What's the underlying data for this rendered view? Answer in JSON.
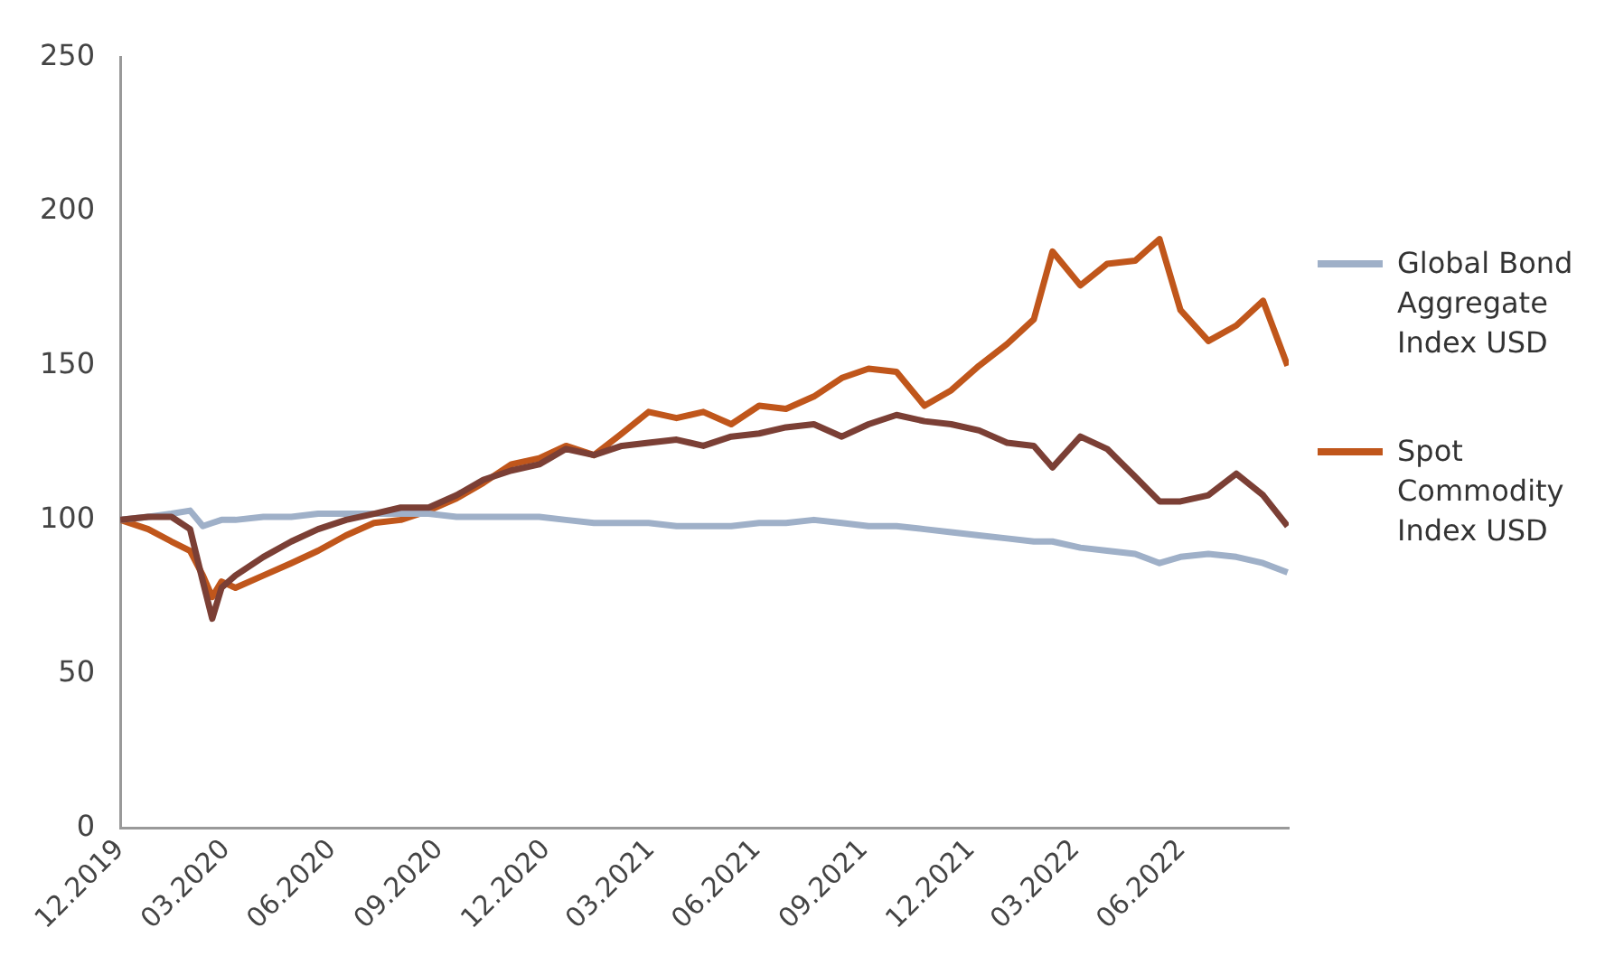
{
  "chart_data": {
    "type": "line",
    "x": [
      "2019-12-31",
      "2020-01-24",
      "2020-02-13",
      "2020-02-29",
      "2020-03-11",
      "2020-03-19",
      "2020-03-27",
      "2020-04-08",
      "2020-05-02",
      "2020-05-26",
      "2020-06-18",
      "2020-07-12",
      "2020-08-05",
      "2020-08-28",
      "2020-09-21",
      "2020-10-15",
      "2020-11-07",
      "2020-12-01",
      "2020-12-25",
      "2021-01-17",
      "2021-02-10",
      "2021-03-06",
      "2021-03-29",
      "2021-04-22",
      "2021-05-15",
      "2021-06-08",
      "2021-07-02",
      "2021-07-25",
      "2021-08-18",
      "2021-09-11",
      "2021-10-04",
      "2021-10-28",
      "2021-11-21",
      "2021-12-14",
      "2022-01-07",
      "2022-01-31",
      "2022-02-23",
      "2022-03-11",
      "2022-04-04",
      "2022-04-27",
      "2022-05-21",
      "2022-06-11",
      "2022-06-29",
      "2022-07-23",
      "2022-08-16",
      "2022-09-08",
      "2022-09-29"
    ],
    "series": [
      {
        "color": "#7b3f35",
        "values": [
          100,
          101,
          101,
          97,
          80,
          68,
          78,
          82,
          88,
          93,
          97,
          100,
          102,
          104,
          104,
          108,
          113,
          116,
          118,
          123,
          121,
          124,
          125,
          126,
          124,
          127,
          128,
          130,
          131,
          127,
          131,
          134,
          132,
          131,
          129,
          125,
          124,
          117,
          127,
          123,
          114,
          106,
          106,
          108,
          115,
          108,
          98
        ]
      },
      {
        "name": "Global Bond Aggregate Index USD",
        "color": "#9fb0c8",
        "values": [
          100,
          101,
          102,
          103,
          98,
          99,
          100,
          100,
          101,
          101,
          102,
          102,
          102,
          102,
          102,
          101,
          101,
          101,
          101,
          100,
          99,
          99,
          99,
          98,
          98,
          98,
          99,
          99,
          100,
          99,
          98,
          98,
          97,
          96,
          95,
          94,
          93,
          93,
          91,
          90,
          89,
          86,
          88,
          89,
          88,
          86,
          83
        ]
      },
      {
        "name": "Spot Commodity Index USD",
        "color": "#c0561b",
        "values": [
          100,
          97,
          93,
          90,
          82,
          75,
          80,
          78,
          82,
          86,
          90,
          95,
          99,
          100,
          103,
          107,
          112,
          118,
          120,
          124,
          121,
          128,
          135,
          133,
          135,
          131,
          137,
          136,
          140,
          146,
          149,
          148,
          137,
          142,
          150,
          157,
          165,
          187,
          176,
          183,
          184,
          191,
          168,
          158,
          163,
          171,
          150
        ]
      }
    ],
    "xlim": [
      "2019-12-31",
      "2022-09-30"
    ],
    "xticks": [
      {
        "value": "2019-12-31",
        "label": "12.2019"
      },
      {
        "value": "2020-03-31",
        "label": "03.2020"
      },
      {
        "value": "2020-06-30",
        "label": "06.2020"
      },
      {
        "value": "2020-09-30",
        "label": "09.2020"
      },
      {
        "value": "2020-12-31",
        "label": "12.2020"
      },
      {
        "value": "2021-03-31",
        "label": "03.2021"
      },
      {
        "value": "2021-06-30",
        "label": "06.2021"
      },
      {
        "value": "2021-09-30",
        "label": "09.2021"
      },
      {
        "value": "2021-12-31",
        "label": "12.2021"
      },
      {
        "value": "2022-03-31",
        "label": "03.2022"
      },
      {
        "value": "2022-06-30",
        "label": "06.2022"
      }
    ],
    "ylim": [
      0,
      250
    ],
    "yticks": [
      0,
      50,
      100,
      150,
      200,
      250
    ],
    "grid": false,
    "legend": "right",
    "marker": "none",
    "line_style": "solid"
  }
}
